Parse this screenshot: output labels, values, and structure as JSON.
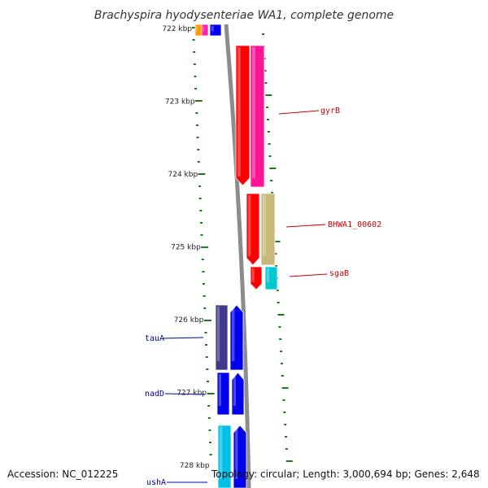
{
  "title": "Brachyspira hyodysenteriae WA1, complete genome",
  "accession": "Accession: NC_012225",
  "genome_info": "Topology: circular; Length: 3,000,694 bp; Genes: 2,648",
  "colors": {
    "backbone": "#8c8c8c",
    "tick": "#1a7a1a",
    "label_right": "#cc0000",
    "label_left": "#000099"
  },
  "scale": {
    "labels": [
      "722 kbp",
      "723 kbp",
      "724 kbp",
      "725 kbp",
      "726 kbp",
      "727 kbp",
      "728 kbp"
    ]
  },
  "genes": [
    {
      "label": "gyrB",
      "color": "#cc0000",
      "fill": "#ff0000"
    },
    {
      "label": "BHWA1_00602",
      "color": "#cc0000",
      "fill": "#c8b97a"
    },
    {
      "label": "sgaB",
      "color": "#cc0000",
      "fill": "#00c8d0"
    },
    {
      "label": "tauA",
      "color": "#000099",
      "fill": "#3d3a8a"
    },
    {
      "label": "nadD",
      "color": "#000099",
      "fill": "#0000ee"
    },
    {
      "label": "ushA",
      "color": "#000099",
      "fill": "#00c0e8"
    }
  ]
}
